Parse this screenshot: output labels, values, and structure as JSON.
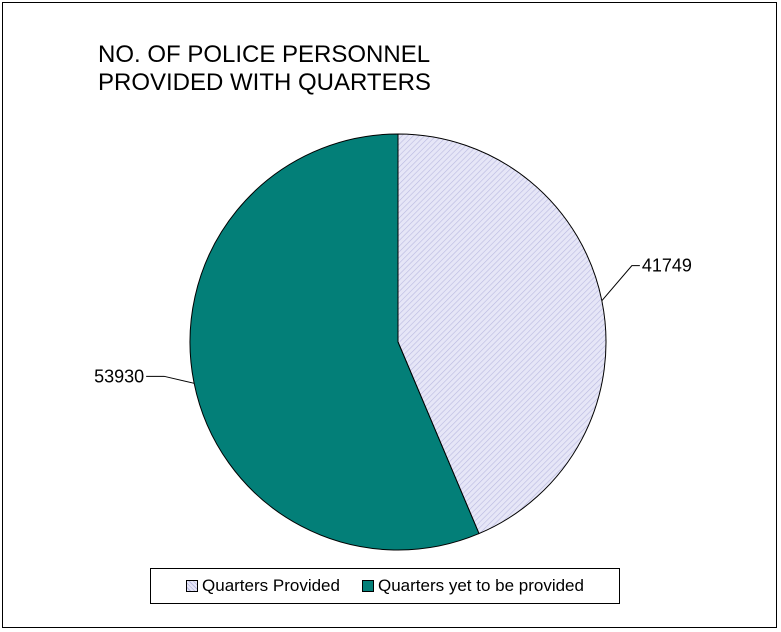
{
  "chart_data": {
    "type": "pie",
    "title_lines": [
      "NO. OF POLICE PERSONNEL",
      "PROVIDED WITH QUARTERS"
    ],
    "categories": [
      "Quarters Provided",
      "Quarters yet to be provided"
    ],
    "values": [
      41749,
      53930
    ],
    "value_labels": [
      "41749",
      "53930"
    ],
    "colors": [
      "#e4e4f6",
      "#037f78"
    ],
    "legend_position": "bottom"
  }
}
